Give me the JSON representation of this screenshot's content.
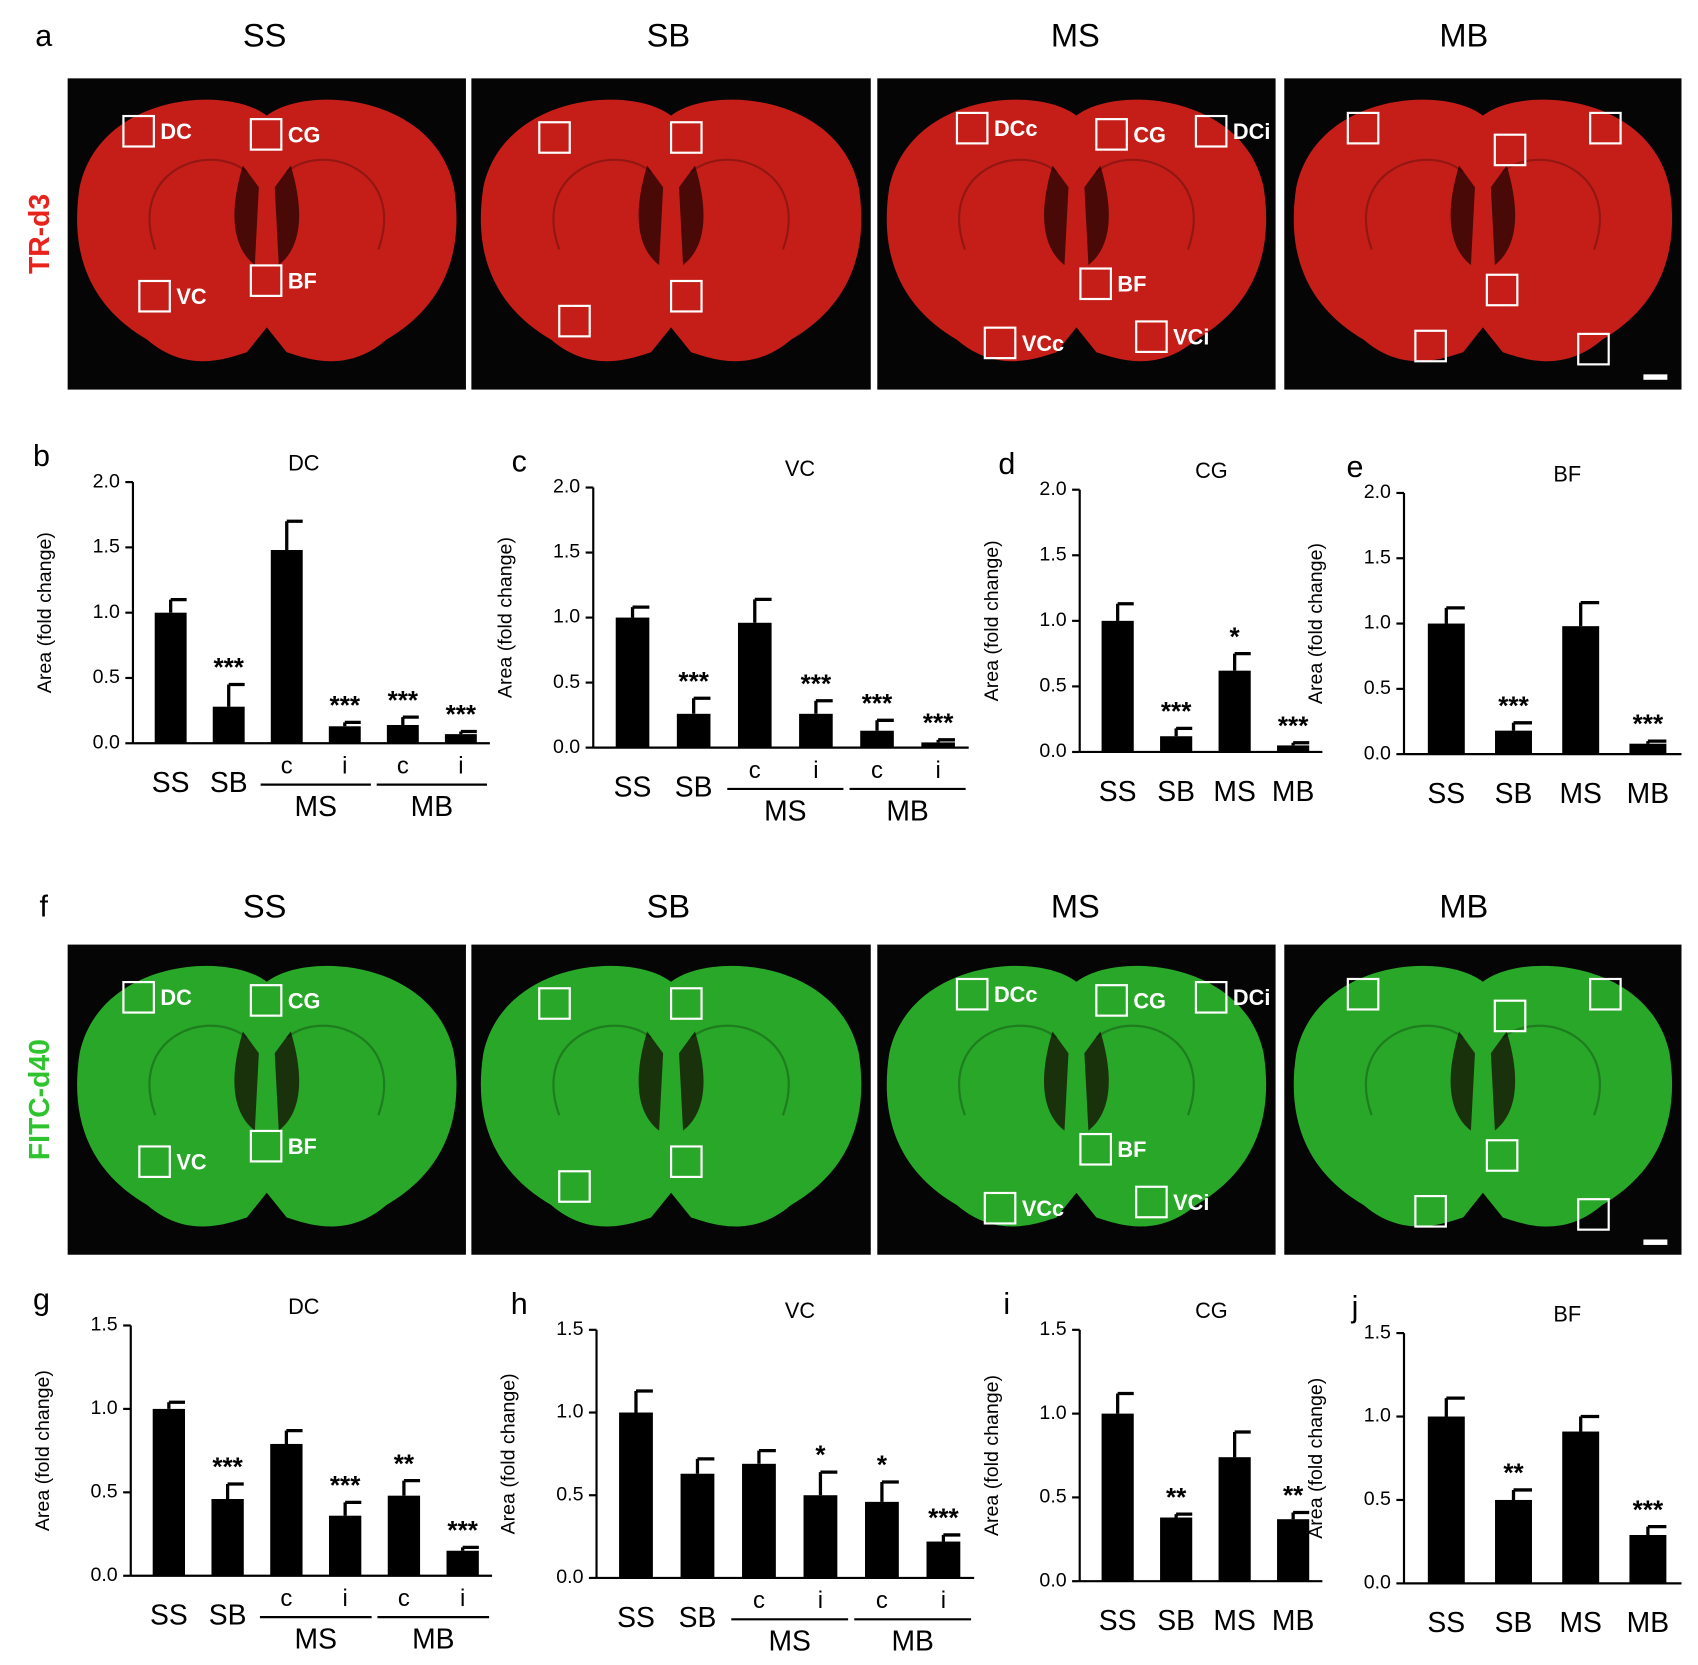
{
  "figure": {
    "rows": [
      {
        "letter": "a",
        "label": "TR-d3",
        "color": "#e8231c",
        "headers": [
          "SS",
          "SB",
          "MS",
          "MB"
        ],
        "rois": [
          [
            "DC",
            "CG",
            "VC",
            "BF"
          ],
          [],
          [
            "DCc",
            "CG",
            "DCi",
            "BF",
            "VCc",
            "VCi"
          ],
          []
        ]
      },
      {
        "letter": "f",
        "label": "FITC-d40",
        "color": "#2fc42f",
        "headers": [
          "SS",
          "SB",
          "MS",
          "MB"
        ],
        "rois": [
          [
            "DC",
            "CG",
            "VC",
            "BF"
          ],
          [],
          [
            "DCc",
            "CG",
            "DCi",
            "BF",
            "VCc",
            "VCi"
          ],
          []
        ]
      }
    ]
  },
  "chart_data": [
    {
      "type": "bar",
      "letter": "b",
      "title": "DC",
      "ylabel": "Area (fold change)",
      "color": "#000000",
      "categories": [
        "SS",
        "SB",
        "c",
        "i",
        "c",
        "i"
      ],
      "groups": [
        {
          "label": "MS",
          "from": 2,
          "to": 3
        },
        {
          "label": "MB",
          "from": 4,
          "to": 5
        }
      ],
      "values": [
        1.0,
        0.28,
        1.48,
        0.13,
        0.14,
        0.07
      ],
      "errors": [
        0.1,
        0.17,
        0.22,
        0.03,
        0.06,
        0.02
      ],
      "annotations": [
        null,
        "***",
        null,
        "***",
        "***",
        "***"
      ],
      "ylim": [
        0,
        2
      ],
      "yticks": [
        {
          "value": 0,
          "label": "0.0"
        },
        {
          "value": 0.5,
          "label": "0.5"
        },
        {
          "value": 1,
          "label": "1.0"
        },
        {
          "value": 1.5,
          "label": "1.5"
        },
        {
          "value": 2,
          "label": "2.0"
        }
      ]
    },
    {
      "type": "bar",
      "letter": "c",
      "title": "VC",
      "ylabel": "Area (fold change)",
      "color": "#000000",
      "categories": [
        "SS",
        "SB",
        "c",
        "i",
        "c",
        "i"
      ],
      "groups": [
        {
          "label": "MS",
          "from": 2,
          "to": 3
        },
        {
          "label": "MB",
          "from": 4,
          "to": 5
        }
      ],
      "values": [
        1.0,
        0.26,
        0.96,
        0.26,
        0.13,
        0.04
      ],
      "errors": [
        0.08,
        0.12,
        0.18,
        0.1,
        0.08,
        0.02
      ],
      "annotations": [
        null,
        "***",
        null,
        "***",
        "***",
        "***"
      ],
      "ylim": [
        0,
        2
      ],
      "yticks": [
        {
          "value": 0,
          "label": "0.0"
        },
        {
          "value": 0.5,
          "label": "0.5"
        },
        {
          "value": 1,
          "label": "1.0"
        },
        {
          "value": 1.5,
          "label": "1.5"
        },
        {
          "value": 2,
          "label": "2.0"
        }
      ]
    },
    {
      "type": "bar",
      "letter": "d",
      "title": "CG",
      "ylabel": "Area (fold change)",
      "color": "#000000",
      "categories": [
        "SS",
        "SB",
        "MS",
        "MB"
      ],
      "groups": [],
      "values": [
        1.0,
        0.12,
        0.62,
        0.05
      ],
      "errors": [
        0.13,
        0.06,
        0.13,
        0.02
      ],
      "annotations": [
        null,
        "***",
        "*",
        "***"
      ],
      "ylim": [
        0,
        2
      ],
      "yticks": [
        {
          "value": 0,
          "label": "0.0"
        },
        {
          "value": 0.5,
          "label": "0.5"
        },
        {
          "value": 1,
          "label": "1.0"
        },
        {
          "value": 1.5,
          "label": "1.5"
        },
        {
          "value": 2,
          "label": "2.0"
        }
      ]
    },
    {
      "type": "bar",
      "letter": "e",
      "title": "BF",
      "ylabel": "Area (fold change)",
      "color": "#000000",
      "categories": [
        "SS",
        "SB",
        "MS",
        "MB"
      ],
      "groups": [],
      "values": [
        1.0,
        0.18,
        0.98,
        0.08
      ],
      "errors": [
        0.12,
        0.06,
        0.18,
        0.02
      ],
      "annotations": [
        null,
        "***",
        null,
        "***"
      ],
      "ylim": [
        0,
        2
      ],
      "yticks": [
        {
          "value": 0,
          "label": "0.0"
        },
        {
          "value": 0.5,
          "label": "0.5"
        },
        {
          "value": 1,
          "label": "1.0"
        },
        {
          "value": 1.5,
          "label": "1.5"
        },
        {
          "value": 2,
          "label": "2.0"
        }
      ]
    },
    {
      "type": "bar",
      "letter": "g",
      "title": "DC",
      "ylabel": "Area (fold change)",
      "color": "#000000",
      "categories": [
        "SS",
        "SB",
        "c",
        "i",
        "c",
        "i"
      ],
      "groups": [
        {
          "label": "MS",
          "from": 2,
          "to": 3
        },
        {
          "label": "MB",
          "from": 4,
          "to": 5
        }
      ],
      "values": [
        1.0,
        0.46,
        0.79,
        0.36,
        0.48,
        0.15
      ],
      "errors": [
        0.04,
        0.09,
        0.08,
        0.08,
        0.09,
        0.02
      ],
      "annotations": [
        null,
        "***",
        null,
        "***",
        "**",
        "***"
      ],
      "ylim": [
        0,
        1.5
      ],
      "yticks": [
        {
          "value": 0,
          "label": "0.0"
        },
        {
          "value": 0.5,
          "label": "0.5"
        },
        {
          "value": 1,
          "label": "1.0"
        },
        {
          "value": 1.5,
          "label": "1.5"
        }
      ]
    },
    {
      "type": "bar",
      "letter": "h",
      "title": "VC",
      "ylabel": "Area (fold change)",
      "color": "#000000",
      "categories": [
        "SS",
        "SB",
        "c",
        "i",
        "c",
        "i"
      ],
      "groups": [
        {
          "label": "MS",
          "from": 2,
          "to": 3
        },
        {
          "label": "MB",
          "from": 4,
          "to": 5
        }
      ],
      "values": [
        1.0,
        0.63,
        0.69,
        0.5,
        0.46,
        0.22
      ],
      "errors": [
        0.13,
        0.09,
        0.08,
        0.14,
        0.12,
        0.04
      ],
      "annotations": [
        null,
        null,
        null,
        "*",
        "*",
        "***"
      ],
      "ylim": [
        0,
        1.5
      ],
      "yticks": [
        {
          "value": 0,
          "label": "0.0"
        },
        {
          "value": 0.5,
          "label": "0.5"
        },
        {
          "value": 1,
          "label": "1.0"
        },
        {
          "value": 1.5,
          "label": "1.5"
        }
      ]
    },
    {
      "type": "bar",
      "letter": "i",
      "title": "CG",
      "ylabel": "Area (fold change)",
      "color": "#000000",
      "categories": [
        "SS",
        "SB",
        "MS",
        "MB"
      ],
      "groups": [],
      "values": [
        1.0,
        0.38,
        0.74,
        0.37
      ],
      "errors": [
        0.12,
        0.02,
        0.15,
        0.04
      ],
      "annotations": [
        null,
        "**",
        null,
        "**"
      ],
      "ylim": [
        0,
        1.5
      ],
      "yticks": [
        {
          "value": 0,
          "label": "0.0"
        },
        {
          "value": 0.5,
          "label": "0.5"
        },
        {
          "value": 1,
          "label": "1.0"
        },
        {
          "value": 1.5,
          "label": "1.5"
        }
      ]
    },
    {
      "type": "bar",
      "letter": "j",
      "title": "BF",
      "ylabel": "Area (fold change)",
      "color": "#000000",
      "categories": [
        "SS",
        "SB",
        "MS",
        "MB"
      ],
      "groups": [],
      "values": [
        1.0,
        0.5,
        0.91,
        0.29
      ],
      "errors": [
        0.11,
        0.06,
        0.09,
        0.05
      ],
      "annotations": [
        null,
        "**",
        null,
        "***"
      ],
      "ylim": [
        0,
        1.5
      ],
      "yticks": [
        {
          "value": 0,
          "label": "0.0"
        },
        {
          "value": 0.5,
          "label": "0.5"
        },
        {
          "value": 1,
          "label": "1.0"
        },
        {
          "value": 1.5,
          "label": "1.5"
        }
      ]
    }
  ]
}
